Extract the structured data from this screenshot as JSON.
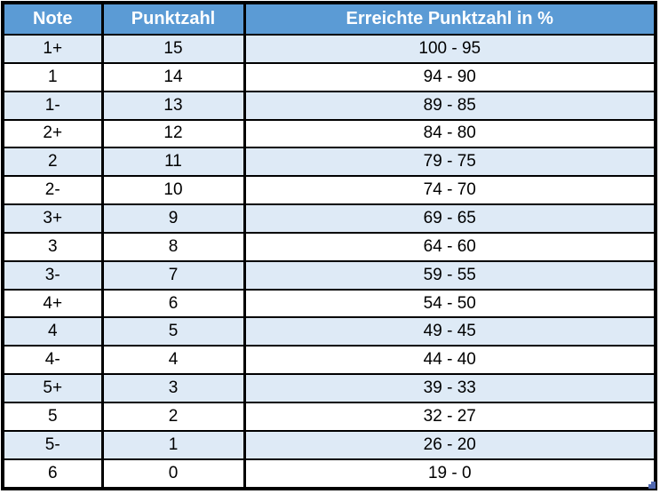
{
  "table": {
    "headers": [
      {
        "label": "Note"
      },
      {
        "label": "Punktzahl"
      },
      {
        "label": "Erreichte Punktzahl in %"
      }
    ],
    "rows": [
      {
        "note": "1+",
        "punktzahl": "15",
        "prozent": "100 - 95"
      },
      {
        "note": "1",
        "punktzahl": "14",
        "prozent": "94 - 90"
      },
      {
        "note": "1-",
        "punktzahl": "13",
        "prozent": "89 - 85"
      },
      {
        "note": "2+",
        "punktzahl": "12",
        "prozent": "84 - 80"
      },
      {
        "note": "2",
        "punktzahl": "11",
        "prozent": "79 - 75"
      },
      {
        "note": "2-",
        "punktzahl": "10",
        "prozent": "74 - 70"
      },
      {
        "note": "3+",
        "punktzahl": "9",
        "prozent": "69 - 65"
      },
      {
        "note": "3",
        "punktzahl": "8",
        "prozent": "64 - 60"
      },
      {
        "note": "3-",
        "punktzahl": "7",
        "prozent": "59 - 55"
      },
      {
        "note": "4+",
        "punktzahl": "6",
        "prozent": "54 - 50"
      },
      {
        "note": "4",
        "punktzahl": "5",
        "prozent": "49 - 45"
      },
      {
        "note": "4-",
        "punktzahl": "4",
        "prozent": "44 - 40"
      },
      {
        "note": "5+",
        "punktzahl": "3",
        "prozent": "39 - 33"
      },
      {
        "note": "5",
        "punktzahl": "2",
        "prozent": "32 - 27"
      },
      {
        "note": "5-",
        "punktzahl": "1",
        "prozent": "26 - 20"
      },
      {
        "note": "6",
        "punktzahl": "0",
        "prozent": "19 - 0"
      }
    ]
  },
  "colors": {
    "header_bg": "#5B9BD5",
    "header_text": "#FFFFFF",
    "row_shaded_bg": "#DEEAF6",
    "row_plain_bg": "#FFFFFF",
    "body_text": "#000000",
    "border": "#000000",
    "resize_handle": "#4F67B0"
  }
}
